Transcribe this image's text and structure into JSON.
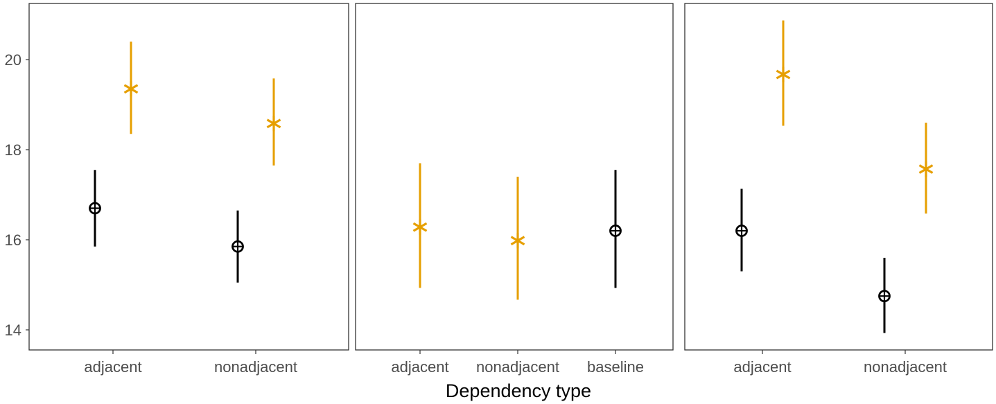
{
  "chart_data": {
    "type": "scatter",
    "xlabel": "Dependency type",
    "ylabel": "",
    "ylim": [
      13.55,
      21.2
    ],
    "yticks": [
      14,
      16,
      18,
      20
    ],
    "grid": false,
    "colors": {
      "orange": "#E69F00",
      "black": "#000000"
    },
    "panels": [
      {
        "categories": [
          "adjacent",
          "nonadjacent"
        ],
        "points": [
          {
            "category": "adjacent",
            "color": "black",
            "shape": "circle-plus",
            "y": 16.7,
            "lower": 15.85,
            "upper": 17.55
          },
          {
            "category": "adjacent",
            "color": "orange",
            "shape": "asterisk",
            "y": 19.35,
            "lower": 18.35,
            "upper": 20.4
          },
          {
            "category": "nonadjacent",
            "color": "black",
            "shape": "circle-plus",
            "y": 15.85,
            "lower": 15.05,
            "upper": 16.65
          },
          {
            "category": "nonadjacent",
            "color": "orange",
            "shape": "asterisk",
            "y": 18.58,
            "lower": 17.65,
            "upper": 19.58
          }
        ]
      },
      {
        "categories": [
          "adjacent",
          "nonadjacent",
          "baseline"
        ],
        "points": [
          {
            "category": "adjacent",
            "color": "orange",
            "shape": "asterisk",
            "y": 16.28,
            "lower": 14.93,
            "upper": 17.7
          },
          {
            "category": "nonadjacent",
            "color": "orange",
            "shape": "asterisk",
            "y": 15.98,
            "lower": 14.67,
            "upper": 17.4
          },
          {
            "category": "baseline",
            "color": "black",
            "shape": "circle-plus",
            "y": 16.2,
            "lower": 14.93,
            "upper": 17.55
          }
        ]
      },
      {
        "categories": [
          "adjacent",
          "nonadjacent"
        ],
        "points": [
          {
            "category": "adjacent",
            "color": "black",
            "shape": "circle-plus",
            "y": 16.2,
            "lower": 15.3,
            "upper": 17.13
          },
          {
            "category": "adjacent",
            "color": "orange",
            "shape": "asterisk",
            "y": 19.67,
            "lower": 18.53,
            "upper": 20.87
          },
          {
            "category": "nonadjacent",
            "color": "black",
            "shape": "circle-plus",
            "y": 14.75,
            "lower": 13.93,
            "upper": 15.6
          },
          {
            "category": "nonadjacent",
            "color": "orange",
            "shape": "asterisk",
            "y": 17.57,
            "lower": 16.58,
            "upper": 18.6
          }
        ]
      }
    ]
  }
}
